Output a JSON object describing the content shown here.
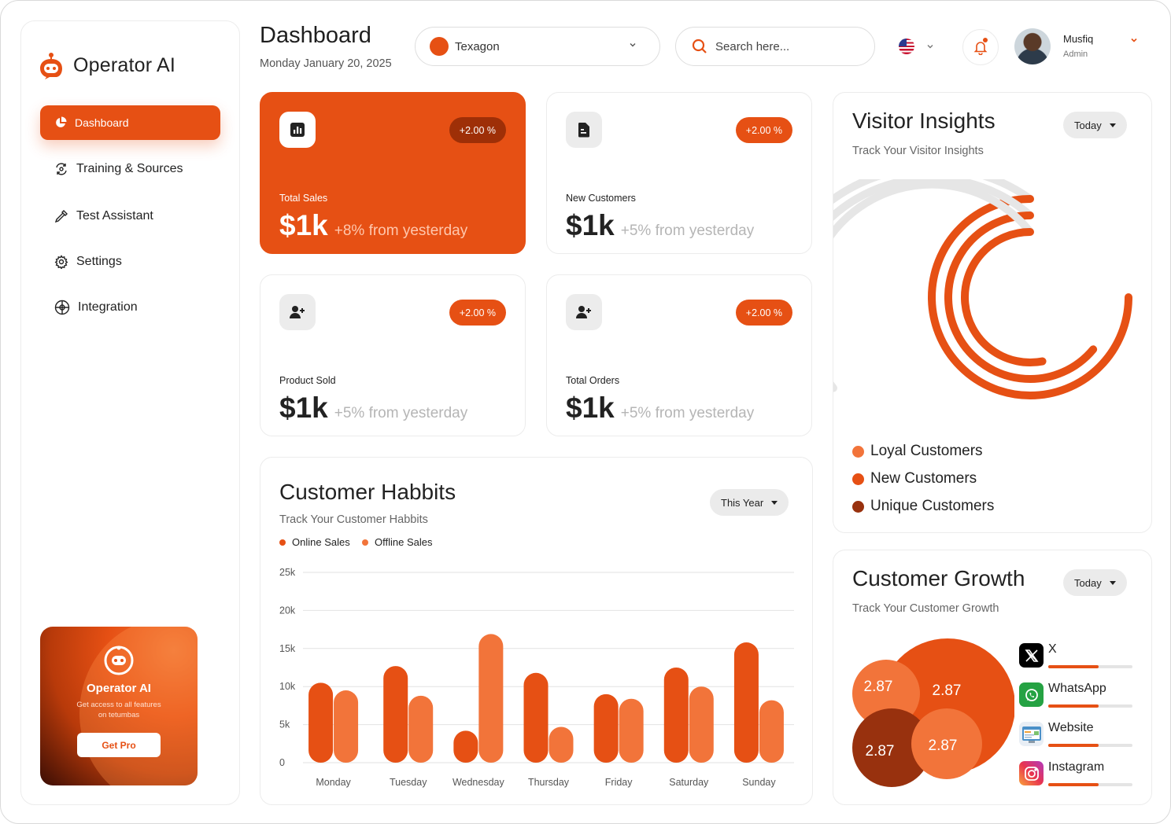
{
  "brand": {
    "name": "Operator AI"
  },
  "sidebar": {
    "items": [
      {
        "label": "Dashboard",
        "icon": "pie-chart-icon",
        "active": true
      },
      {
        "label": "Training & Sources",
        "icon": "refresh-icon"
      },
      {
        "label": "Test Assistant",
        "icon": "dropper-icon"
      },
      {
        "label": "Settings",
        "icon": "gear-icon"
      },
      {
        "label": "Integration",
        "icon": "globe-grid-icon"
      }
    ],
    "promo": {
      "title": "Operator AI",
      "subtitle": "Get access to all features on tetumbas",
      "button": "Get Pro"
    }
  },
  "header": {
    "title": "Dashboard",
    "date": "Monday January 20, 2025",
    "workspace": "Texagon",
    "search_placeholder": "Search here...",
    "user": {
      "name": "Musfiq",
      "role": "Admin"
    }
  },
  "stats": [
    {
      "label": "Total Sales",
      "value": "$1k",
      "delta": "+8% from yesterday",
      "badge": "+2.00 %",
      "icon": "bar-chart-icon",
      "highlight": true
    },
    {
      "label": "New Customers",
      "value": "$1k",
      "delta": "+5% from yesterday",
      "badge": "+2.00 %",
      "icon": "document-icon"
    },
    {
      "label": "Product Sold",
      "value": "$1k",
      "delta": "+5% from yesterday",
      "badge": "+2.00 %",
      "icon": "add-user-icon"
    },
    {
      "label": "Total Orders",
      "value": "$1k",
      "delta": "+5% from yesterday",
      "badge": "+2.00 %",
      "icon": "add-user-icon"
    }
  ],
  "habits": {
    "title": "Customer Habbits",
    "subtitle": "Track Your Customer Habbits",
    "filter": "This Year",
    "legend": [
      "Online Sales",
      "Offline Sales"
    ]
  },
  "visitor": {
    "title": "Visitor Insights",
    "subtitle": "Track Your Visitor Insights",
    "filter": "Today",
    "legend": [
      {
        "label": "Loyal Customers",
        "color": "#f2743a"
      },
      {
        "label": "New Customers",
        "color": "#e65014"
      },
      {
        "label": "Unique Customers",
        "color": "#98310e"
      }
    ],
    "rings": [
      0.75,
      0.64,
      0.53
    ]
  },
  "growth": {
    "title": "Customer Growth",
    "subtitle": "Track Your Customer Growth",
    "filter": "Today",
    "bubbles": [
      "2.87",
      "2.87",
      "2.87",
      "2.87"
    ],
    "channels": [
      {
        "name": "X",
        "icon": "x-logo-icon",
        "progress": 0.6
      },
      {
        "name": "WhatsApp",
        "icon": "whatsapp-icon",
        "progress": 0.6
      },
      {
        "name": "Website",
        "icon": "website-icon",
        "progress": 0.6
      },
      {
        "name": "Instagram",
        "icon": "instagram-icon",
        "progress": 0.6
      }
    ]
  },
  "colors": {
    "accent": "#e65014",
    "accent_light": "#f2743a",
    "accent_dark": "#98310e"
  },
  "chart_data": {
    "type": "bar",
    "categories": [
      "Monday",
      "Tuesday",
      "Wednesday",
      "Thursday",
      "Friday",
      "Saturday",
      "Sunday"
    ],
    "series": [
      {
        "name": "Online Sales",
        "values": [
          10500,
          12700,
          4200,
          11800,
          9000,
          12500,
          15800
        ]
      },
      {
        "name": "Offline Sales",
        "values": [
          9500,
          8800,
          16900,
          4700,
          8400,
          10000,
          8200
        ]
      }
    ],
    "yticks": [
      "0",
      "5k",
      "10k",
      "15k",
      "20k",
      "25k"
    ],
    "ylim": [
      0,
      25000
    ],
    "grid": true,
    "legend_position": "top-left"
  }
}
